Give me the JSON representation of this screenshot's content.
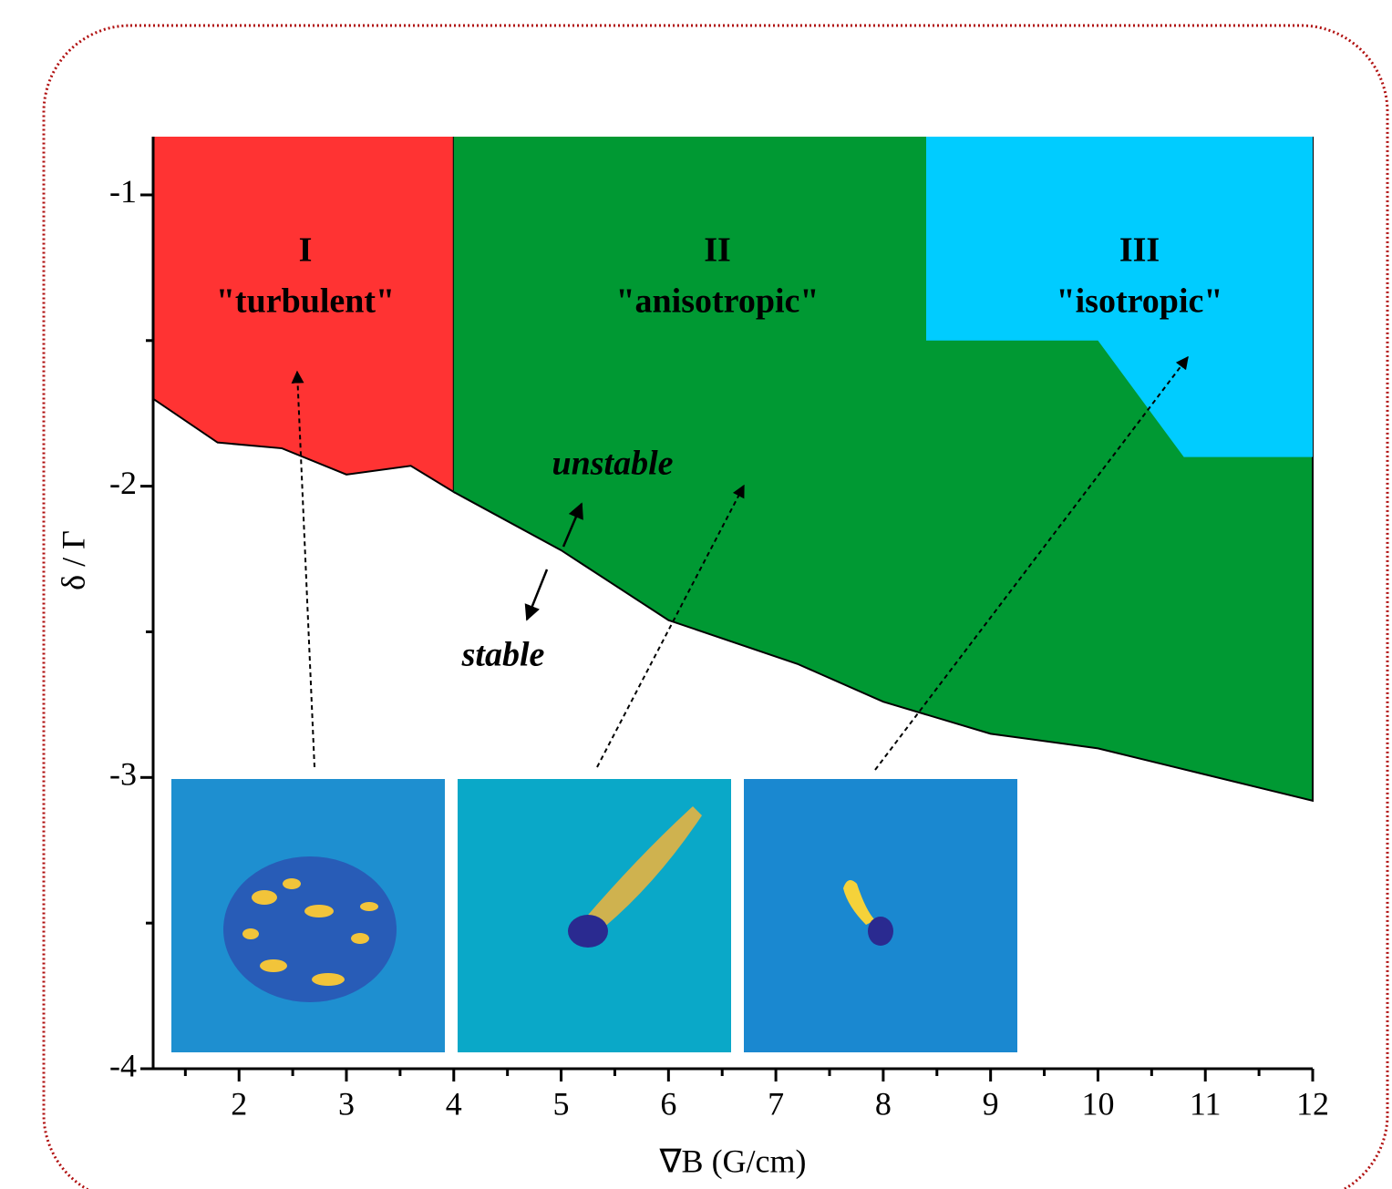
{
  "chart_data": {
    "type": "area",
    "xlabel": "∇B (G/cm)",
    "ylabel": "δ / Γ",
    "xlim": [
      1.2,
      12
    ],
    "ylim": [
      -4,
      -0.8
    ],
    "xticks": [
      2,
      3,
      4,
      5,
      6,
      7,
      8,
      9,
      10,
      11,
      12
    ],
    "yticks": [
      -1,
      -2,
      -3,
      -4
    ],
    "xminorticks": [
      1.5,
      2.5,
      3.5,
      4.5,
      5.5,
      6.5,
      7.5,
      8.5,
      9.5,
      10.5,
      11.5
    ],
    "yminorticks": [
      -1.5,
      -2.5,
      -3.5
    ],
    "series": [
      {
        "name": "I",
        "description": "\"turbulent\"",
        "color": "#ff3333",
        "edge": true,
        "x": [
          1.2,
          1.8,
          2.4,
          3.0,
          3.6,
          4.0
        ],
        "y": [
          -1.7,
          -1.85,
          -1.87,
          -1.96,
          -1.93,
          -2.02
        ]
      },
      {
        "name": "II",
        "description": "\"anisotropic\"",
        "color": "#009933",
        "edge": true,
        "x": [
          4.0,
          5.0,
          6.0,
          7.2,
          8.0,
          9.0,
          10.0,
          11.0,
          12.0
        ],
        "y": [
          -2.02,
          -2.22,
          -2.46,
          -2.61,
          -2.74,
          -2.85,
          -2.9,
          -2.99,
          -3.08
        ]
      },
      {
        "name": "III",
        "description": "\"isotropic\"",
        "color": "#00ccff",
        "edge": false,
        "x": [
          8.4,
          10.0,
          10.8,
          12.0
        ],
        "y": [
          -1.5,
          -1.5,
          -1.9,
          -1.9
        ]
      }
    ],
    "annotations": [
      "unstable",
      "stable"
    ]
  }
}
